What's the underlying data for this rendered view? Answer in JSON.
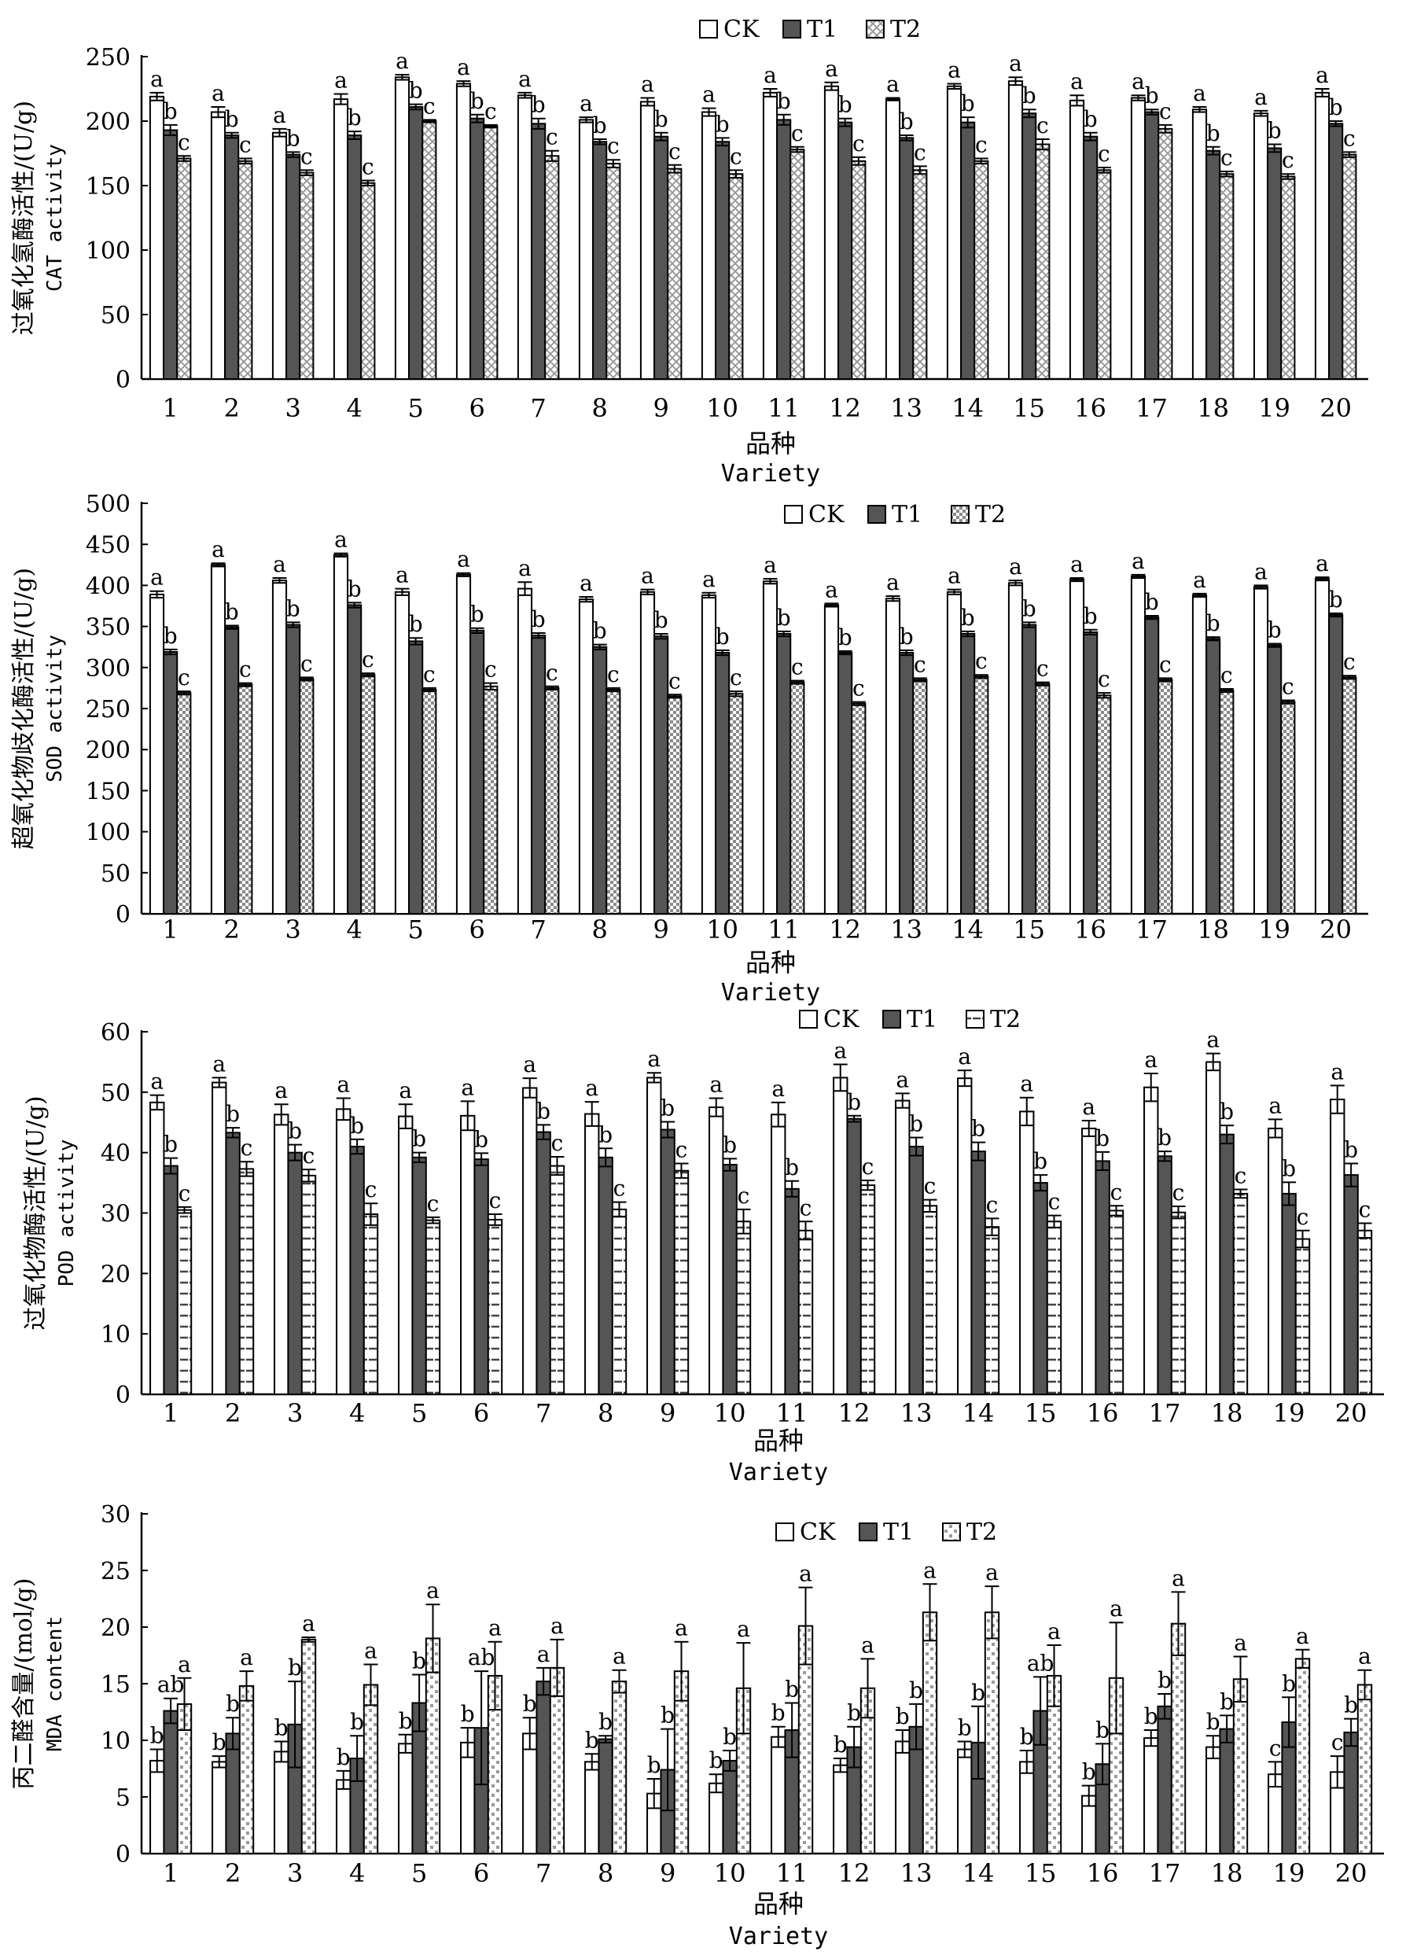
{
  "categories": [
    "1",
    "2",
    "3",
    "4",
    "5",
    "6",
    "7",
    "8",
    "9",
    "10",
    "11",
    "12",
    "13",
    "14",
    "15",
    "16",
    "17",
    "18",
    "19",
    "20"
  ],
  "chart_data": [
    {
      "type": "bar",
      "ylabel_cn": "过氧化氢酶活性/(U/g)",
      "ylabel_en": "CAT activity",
      "xlabel_cn": "品种",
      "xlabel_en": "Variety",
      "ylim": [
        0,
        250
      ],
      "yticks": [
        0,
        50,
        100,
        150,
        200,
        250
      ],
      "legend": "top-center",
      "series": [
        {
          "name": "CK",
          "values": [
            219,
            207,
            191,
            217,
            234,
            229,
            220,
            201,
            215,
            207,
            222,
            227,
            217,
            227,
            231,
            216,
            218,
            209,
            206,
            222
          ],
          "errors": [
            3,
            4,
            3,
            4,
            2,
            2,
            2,
            2,
            3,
            3,
            3,
            3,
            1,
            2,
            3,
            4,
            2,
            2,
            2,
            3
          ],
          "letters": [
            "a",
            "a",
            "a",
            "a",
            "a",
            "a",
            "a",
            "a",
            "a",
            "a",
            "a",
            "a",
            "a",
            "a",
            "a",
            "a",
            "a",
            "a",
            "a",
            "a"
          ]
        },
        {
          "name": "T1",
          "values": [
            193,
            189,
            174,
            189,
            211,
            202,
            198,
            184,
            188,
            184,
            201,
            199,
            187,
            199,
            206,
            188,
            207,
            177,
            179,
            198
          ],
          "errors": [
            4,
            2,
            2,
            3,
            2,
            3,
            4,
            2,
            3,
            3,
            4,
            3,
            2,
            4,
            3,
            3,
            2,
            3,
            3,
            2
          ],
          "letters": [
            "b",
            "b",
            "b",
            "b",
            "b",
            "b",
            "b",
            "b",
            "b",
            "b",
            "b",
            "b",
            "b",
            "b",
            "b",
            "b",
            "b",
            "b",
            "b",
            "b"
          ]
        },
        {
          "name": "T2",
          "values": [
            171,
            169,
            160,
            152,
            200,
            196,
            173,
            167,
            163,
            159,
            178,
            169,
            162,
            169,
            182,
            162,
            194,
            159,
            157,
            174
          ],
          "errors": [
            2,
            2,
            2,
            2,
            1,
            1,
            4,
            3,
            3,
            3,
            2,
            3,
            3,
            2,
            4,
            2,
            3,
            2,
            2,
            2
          ],
          "letters": [
            "c",
            "c",
            "c",
            "c",
            "c",
            "c",
            "c",
            "c",
            "c",
            "c",
            "c",
            "c",
            "c",
            "c",
            "c",
            "c",
            "c",
            "c",
            "c",
            "c"
          ]
        }
      ]
    },
    {
      "type": "bar",
      "ylabel_cn": "超氧化物歧化酶活性/(U/g)",
      "ylabel_en": "SOD activity",
      "xlabel_cn": "品种",
      "xlabel_en": "Variety",
      "ylim": [
        0,
        500
      ],
      "yticks": [
        0,
        50,
        100,
        150,
        200,
        250,
        300,
        350,
        400,
        450,
        500
      ],
      "legend": "top-center",
      "series": [
        {
          "name": "CK",
          "values": [
            389,
            425,
            406,
            437,
            392,
            413,
            396,
            383,
            392,
            388,
            405,
            376,
            384,
            392,
            403,
            407,
            411,
            388,
            398,
            408
          ],
          "errors": [
            4,
            2,
            3,
            2,
            4,
            2,
            8,
            3,
            3,
            3,
            3,
            2,
            3,
            3,
            3,
            2,
            2,
            2,
            2,
            2
          ],
          "letters": [
            "a",
            "a",
            "a",
            "a",
            "a",
            "a",
            "a",
            "a",
            "a",
            "a",
            "a",
            "a",
            "a",
            "a",
            "a",
            "a",
            "a",
            "a",
            "a",
            "a"
          ]
        },
        {
          "name": "T1",
          "values": [
            319,
            349,
            352,
            376,
            332,
            345,
            339,
            325,
            338,
            318,
            341,
            318,
            318,
            341,
            352,
            343,
            361,
            335,
            327,
            364
          ],
          "errors": [
            3,
            2,
            3,
            3,
            4,
            3,
            3,
            3,
            3,
            3,
            3,
            2,
            3,
            3,
            3,
            3,
            2,
            2,
            2,
            2
          ],
          "letters": [
            "b",
            "b",
            "b",
            "b",
            "b",
            "b",
            "b",
            "b",
            "b",
            "b",
            "b",
            "b",
            "b",
            "b",
            "b",
            "b",
            "b",
            "b",
            "b",
            "b"
          ]
        },
        {
          "name": "T2",
          "values": [
            269,
            279,
            286,
            291,
            273,
            277,
            275,
            273,
            265,
            268,
            282,
            256,
            285,
            289,
            280,
            266,
            285,
            272,
            258,
            288
          ],
          "errors": [
            2,
            2,
            2,
            2,
            2,
            4,
            2,
            2,
            2,
            3,
            2,
            2,
            2,
            2,
            2,
            3,
            2,
            2,
            2,
            2
          ],
          "letters": [
            "c",
            "c",
            "c",
            "c",
            "c",
            "c",
            "c",
            "c",
            "c",
            "c",
            "c",
            "c",
            "c",
            "c",
            "c",
            "c",
            "c",
            "c",
            "c",
            "c"
          ]
        }
      ]
    },
    {
      "type": "bar",
      "ylabel_cn": "过氧化物酶活性/(U/g)",
      "ylabel_en": "POD activity",
      "xlabel_cn": "品种",
      "xlabel_en": "Variety",
      "ylim": [
        0,
        60
      ],
      "yticks": [
        0,
        10,
        20,
        30,
        40,
        50,
        60
      ],
      "legend": "top-center",
      "series": [
        {
          "name": "CK",
          "values": [
            48.3,
            51.6,
            46.3,
            47.2,
            46.0,
            46.1,
            50.7,
            46.4,
            52.4,
            47.5,
            46.3,
            52.4,
            48.6,
            52.3,
            46.8,
            44.0,
            50.8,
            55.0,
            44.0,
            48.8
          ],
          "errors": [
            1.2,
            0.8,
            1.7,
            1.8,
            2.0,
            2.4,
            1.6,
            2.0,
            0.8,
            1.5,
            2.0,
            2.2,
            1.2,
            1.3,
            2.3,
            1.3,
            2.3,
            1.4,
            1.5,
            2.3
          ],
          "letters": [
            "a",
            "a",
            "a",
            "a",
            "a",
            "a",
            "a",
            "a",
            "a",
            "a",
            "a",
            "a",
            "a",
            "a",
            "a",
            "a",
            "a",
            "a",
            "a",
            "a"
          ]
        },
        {
          "name": "T1",
          "values": [
            37.8,
            43.3,
            40.0,
            41.0,
            39.2,
            38.9,
            43.4,
            39.2,
            43.8,
            38.0,
            34.0,
            45.6,
            41.0,
            40.2,
            35.0,
            38.6,
            39.4,
            43.0,
            33.2,
            36.3
          ],
          "errors": [
            1.3,
            0.8,
            1.3,
            1.2,
            0.8,
            1.0,
            1.2,
            1.5,
            1.3,
            1.0,
            1.3,
            0.5,
            1.5,
            1.5,
            1.3,
            1.5,
            0.8,
            1.5,
            1.9,
            1.9
          ],
          "letters": [
            "b",
            "b",
            "b",
            "b",
            "b",
            "b",
            "b",
            "b",
            "b",
            "b",
            "b",
            "b",
            "b",
            "b",
            "b",
            "b",
            "b",
            "b",
            "b",
            "b"
          ]
        },
        {
          "name": "T2",
          "values": [
            30.5,
            37.3,
            36.2,
            29.8,
            28.8,
            28.9,
            37.8,
            30.6,
            37.0,
            28.6,
            27.1,
            34.6,
            31.2,
            27.7,
            28.6,
            30.4,
            30.1,
            33.2,
            25.7,
            27.1
          ],
          "errors": [
            0.5,
            1.2,
            1.0,
            1.8,
            0.5,
            0.9,
            1.5,
            1.2,
            1.2,
            2.0,
            1.5,
            0.8,
            1.0,
            1.4,
            1.0,
            0.8,
            1.0,
            0.7,
            1.4,
            1.2
          ],
          "letters": [
            "c",
            "c",
            "c",
            "c",
            "c",
            "c",
            "c",
            "c",
            "c",
            "c",
            "c",
            "c",
            "c",
            "c",
            "c",
            "c",
            "c",
            "c",
            "c",
            "c"
          ]
        }
      ]
    },
    {
      "type": "bar",
      "ylabel_cn": "丙二醛含量/(mol/g)",
      "ylabel_en": "MDA content",
      "xlabel_cn": "品种",
      "xlabel_en": "Variety",
      "ylim": [
        0,
        30
      ],
      "yticks": [
        0,
        5,
        10,
        15,
        20,
        25,
        30
      ],
      "legend": "top-center",
      "series": [
        {
          "name": "CK",
          "values": [
            8.2,
            8.1,
            9.0,
            6.5,
            9.7,
            9.8,
            10.6,
            8.1,
            5.3,
            6.2,
            10.3,
            7.8,
            9.9,
            9.2,
            8.1,
            5.1,
            10.2,
            9.4,
            7.0,
            7.2
          ],
          "errors": [
            1.0,
            0.5,
            0.9,
            0.8,
            0.8,
            1.3,
            1.4,
            0.7,
            1.3,
            0.8,
            0.9,
            0.6,
            1.0,
            0.7,
            1.0,
            0.9,
            0.7,
            1.0,
            1.1,
            1.4
          ],
          "letters": [
            "b",
            "b",
            "b",
            "b",
            "b",
            "b",
            "b",
            "b",
            "b",
            "b",
            "b",
            "b",
            "b",
            "b",
            "b",
            "b",
            "b",
            "b",
            "c",
            "c"
          ]
        },
        {
          "name": "T1",
          "values": [
            12.6,
            10.6,
            11.4,
            8.4,
            13.3,
            11.1,
            15.2,
            10.1,
            7.4,
            8.2,
            10.9,
            9.4,
            11.2,
            9.8,
            12.6,
            7.9,
            13.0,
            11.0,
            11.6,
            10.7
          ],
          "errors": [
            1.1,
            1.4,
            3.8,
            2.0,
            2.5,
            5.0,
            1.2,
            0.3,
            3.6,
            0.9,
            2.4,
            1.8,
            2.0,
            3.2,
            3.0,
            1.8,
            1.1,
            1.2,
            2.2,
            1.2
          ],
          "letters": [
            "ab",
            "b",
            "b",
            "b",
            "b",
            "ab",
            "a",
            "b",
            "b",
            "b",
            "b",
            "b",
            "b",
            "b",
            "ab",
            "b",
            "b",
            "b",
            "b",
            "b"
          ]
        },
        {
          "name": "T2",
          "values": [
            13.2,
            14.8,
            18.9,
            14.9,
            19.0,
            15.7,
            16.4,
            15.2,
            16.1,
            14.6,
            20.1,
            14.6,
            21.3,
            21.3,
            15.7,
            15.5,
            20.3,
            15.4,
            17.2,
            14.9
          ],
          "errors": [
            2.3,
            1.3,
            0.2,
            1.8,
            3.0,
            3.0,
            2.5,
            1.0,
            2.6,
            4.0,
            3.4,
            2.6,
            2.5,
            2.3,
            2.7,
            4.9,
            2.8,
            2.0,
            0.8,
            1.3
          ],
          "letters": [
            "a",
            "a",
            "a",
            "a",
            "a",
            "a",
            "a",
            "a",
            "a",
            "a",
            "a",
            "a",
            "a",
            "a",
            "a",
            "a",
            "a",
            "a",
            "a",
            "a"
          ]
        }
      ]
    }
  ]
}
